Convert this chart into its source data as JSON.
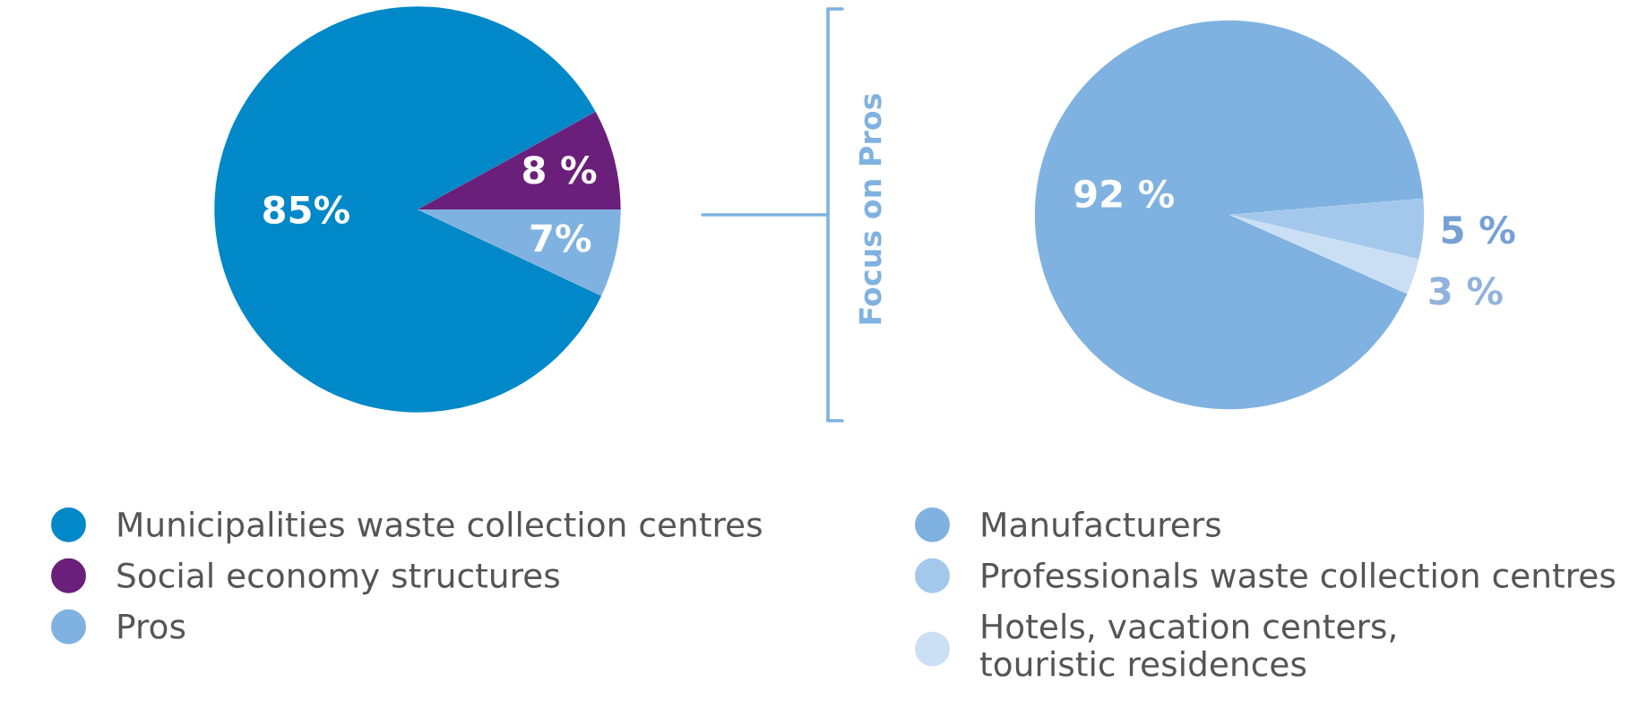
{
  "chart_data": [
    {
      "type": "pie",
      "categories": [
        "Municipalities waste collection centres",
        "Social economy structures",
        "Pros"
      ],
      "values": [
        85,
        8,
        7
      ],
      "colors": [
        "#0088c8",
        "#6a1f7a",
        "#7fb2e0"
      ],
      "value_labels": [
        "85%",
        "8 %",
        "7%"
      ],
      "legend": "bottom"
    },
    {
      "type": "pie",
      "categories": [
        "Manufacturers",
        "Professionals waste collection centres",
        "Hotels, vacation centers,\ntouristic residences"
      ],
      "values": [
        92,
        5,
        3
      ],
      "colors": [
        "#7fb2e0",
        "#a4c8ec",
        "#cbdff4"
      ],
      "value_labels": [
        "92 %",
        "5 %",
        "3 %"
      ],
      "legend": "bottom",
      "annotations": [
        "Focus on Pros"
      ]
    }
  ]
}
